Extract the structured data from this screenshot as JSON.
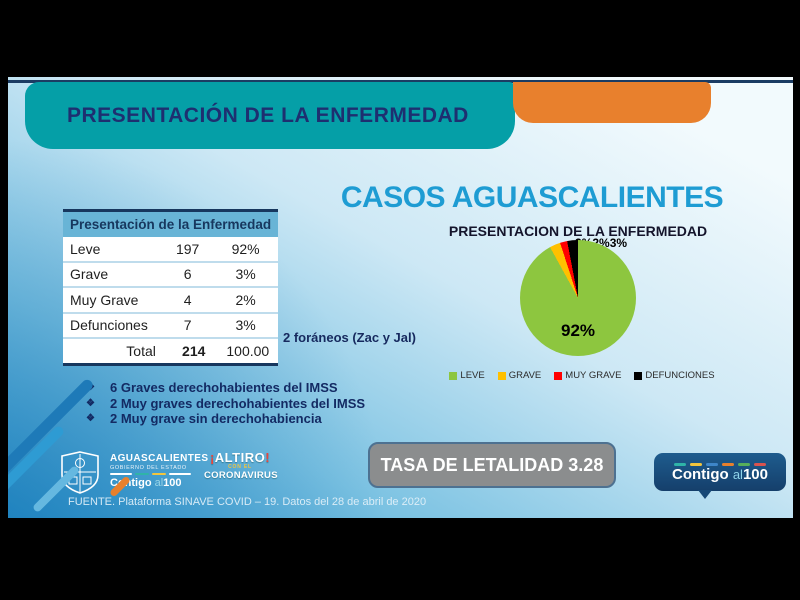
{
  "banner": {
    "title": "PRESENTACIÓN DE LA ENFERMEDAD"
  },
  "heading": "CASOS AGUASCALIENTES",
  "table": {
    "header": "Presentación de la Enfermedad",
    "rows": [
      {
        "label": "Leve",
        "count": "197",
        "pct": "92%"
      },
      {
        "label": "Grave",
        "count": "6",
        "pct": "3%"
      },
      {
        "label": "Muy Grave",
        "count": "4",
        "pct": "2%"
      },
      {
        "label": "Defunciones",
        "count": "7",
        "pct": "3%"
      }
    ],
    "total": {
      "label": "Total",
      "count": "214",
      "pct": "100.00"
    }
  },
  "note_foraneos": "2 foráneos (Zac y Jal)",
  "chart_data": {
    "type": "pie",
    "title": "PRESENTACION DE LA ENFERMEDAD",
    "categories": [
      "LEVE",
      "GRAVE",
      "MUY GRAVE",
      "DEFUNCIONES"
    ],
    "values": [
      92,
      3,
      2,
      3
    ],
    "counts": [
      197,
      6,
      4,
      7
    ],
    "colors": [
      "#8DC63F",
      "#FFC000",
      "#FF0000",
      "#000000"
    ],
    "inner_label": "92%",
    "outer_label": "3%2%3%",
    "legend_position": "bottom"
  },
  "bullets": [
    "6 Graves derechohabientes del IMSS",
    "2 Muy graves derechohabientes del IMSS",
    "2 Muy grave sin derechohabiencia"
  ],
  "lethality_box": "TASA DE LETALIDAD 3.28",
  "footer": {
    "gov_logo": {
      "line1": "AGUASCALIENTES",
      "line2": "GOBIERNO DEL ESTADO",
      "contigo": "Contigo",
      "al": "al",
      "cien": "100"
    },
    "altiro_logo": {
      "open_bang": "¡",
      "word": "ALTIRO",
      "close_bang": "!",
      "line2": "CON EL",
      "line3": "CORONAVIRUS"
    },
    "source": "FUENTE. Plataforma SINAVE COVID – 19. Datos del 28 de abril de 2020"
  },
  "contigo_badge": {
    "contigo": "Contigo",
    "al": "al",
    "cien": "100"
  },
  "colors": {
    "banner_teal": "#059FA7",
    "banner_text": "#1E2F70",
    "orange_accent": "#E8802D",
    "heading_blue": "#1E9CD3",
    "table_header_bg": "#68B4D6",
    "table_border_navy": "#17375E",
    "lethality_gray": "#8B8D8E",
    "badge_blue": "#174A7C",
    "badge_dashes": [
      "#2FB4A8",
      "#F2C53D",
      "#3E86C8",
      "#E8802D",
      "#57AE5B",
      "#D9534F"
    ]
  }
}
